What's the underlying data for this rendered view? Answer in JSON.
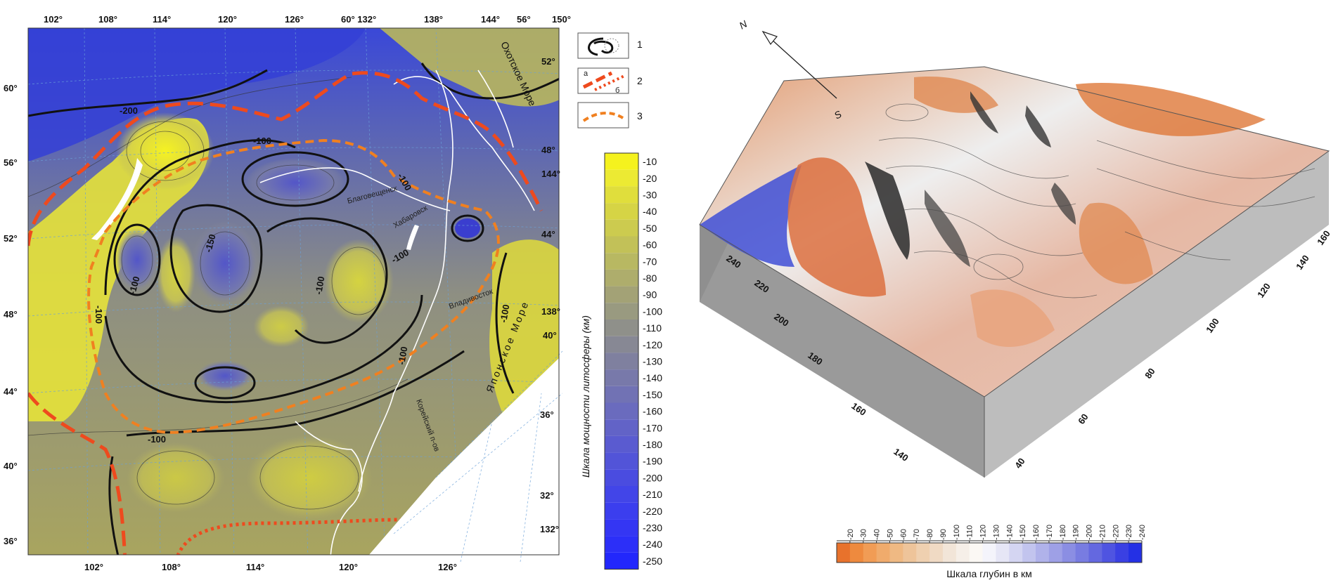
{
  "left_map": {
    "top_lon_labels": [
      "102°",
      "108°",
      "114°",
      "120°",
      "126°",
      "60° 132°",
      "138°",
      "144°",
      "56°",
      "150°"
    ],
    "bottom_lon_labels": [
      "102°",
      "108°",
      "114°",
      "120°",
      "126°"
    ],
    "left_lat_labels": [
      "60°",
      "56°",
      "52°",
      "48°",
      "44°",
      "40°",
      "36°"
    ],
    "right_lat_labels": [
      "52°",
      "48°",
      "144°",
      "44°",
      "138°",
      "40°",
      "36°",
      "32°",
      "132°"
    ],
    "contour_labels": [
      "-200",
      "-100",
      "-100",
      "-100",
      "-100",
      "-150",
      "-100",
      "-100",
      "-100",
      "-100",
      "-100"
    ],
    "place_names": [
      "Охотское Море",
      "Японское Море",
      "Хабаровск",
      "Благовещенск",
      "Владивосток",
      "Корейский п-ов"
    ],
    "legend_items": [
      {
        "num": "1",
        "sub": ""
      },
      {
        "num": "2",
        "sub_a": "a",
        "sub_b": "б"
      },
      {
        "num": "3",
        "sub": ""
      }
    ],
    "scale_title": "Шкала мощности литосферы (км)",
    "scale_values": [
      "-10",
      "-20",
      "-30",
      "-40",
      "-50",
      "-60",
      "-70",
      "-80",
      "-90",
      "-100",
      "-110",
      "-120",
      "-130",
      "-140",
      "-150",
      "-160",
      "-170",
      "-180",
      "-190",
      "-200",
      "-210",
      "-220",
      "-230",
      "-240",
      "-250"
    ],
    "scale_colors": [
      "#f5f21e",
      "#ecea33",
      "#e0de3c",
      "#d6d445",
      "#cccb4f",
      "#c2c158",
      "#b8b862",
      "#aead6c",
      "#a3a276",
      "#999a80",
      "#8f908a",
      "#878894",
      "#7f809f",
      "#7879aa",
      "#7172b4",
      "#6a6bbe",
      "#6263c7",
      "#5a5bd0",
      "#5254d8",
      "#4a4ce0",
      "#4245e8",
      "#3b3eee",
      "#3436f3",
      "#2c2ff8",
      "#2227fc"
    ]
  },
  "right_block": {
    "compass_n": "N",
    "compass_s": "S",
    "left_axis_labels": [
      "240",
      "220",
      "200",
      "180",
      "160",
      "140"
    ],
    "front_axis_labels": [
      "40",
      "60",
      "80",
      "100",
      "120",
      "140",
      "160"
    ],
    "scale_values": [
      "-20",
      "-30",
      "-40",
      "-50",
      "-60",
      "-70",
      "-80",
      "-90",
      "-100",
      "-110",
      "-120",
      "-130",
      "-140",
      "-150",
      "-160",
      "-170",
      "-180",
      "-190",
      "-200",
      "-210",
      "-220",
      "-230",
      "-240"
    ],
    "scale_colors": [
      "#e8722c",
      "#ee8a3e",
      "#f19c55",
      "#f0ab6c",
      "#efb983",
      "#eec49a",
      "#efd0b0",
      "#f0dac4",
      "#f2e5d8",
      "#f6efe8",
      "#fbf8f4",
      "#f4f4fb",
      "#e6e6f6",
      "#d4d5f2",
      "#c2c4ee",
      "#b0b2ea",
      "#9ea0e6",
      "#8b8ee3",
      "#787ce1",
      "#6468e0",
      "#4f54e1",
      "#3a40e3",
      "#2430e5"
    ],
    "scale_title": "Шкала глубин в км"
  }
}
